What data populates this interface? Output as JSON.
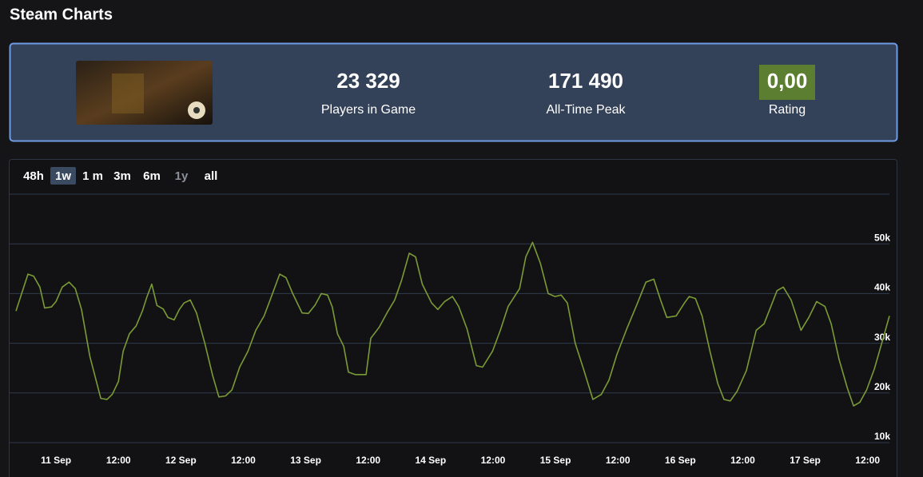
{
  "header": {
    "title": "Steam Charts"
  },
  "stats": [
    {
      "value": "23 329",
      "label": "Players in Game"
    },
    {
      "value": "171 490",
      "label": "All-Time Peak"
    },
    {
      "value": "0,00",
      "label": "Rating"
    }
  ],
  "range_buttons": [
    {
      "label": "48h",
      "state": "normal"
    },
    {
      "label": "1w",
      "state": "selected"
    },
    {
      "label": "1 m",
      "state": "normal"
    },
    {
      "label": "3m",
      "state": "normal"
    },
    {
      "label": "6m",
      "state": "normal"
    },
    {
      "label": "1y",
      "state": "disabled"
    },
    {
      "label": "all",
      "state": "normal"
    }
  ],
  "chart_data": {
    "type": "line",
    "color": "#7a9b35",
    "grid": true,
    "xlim": [
      -7.7,
      160.2
    ],
    "ylim": [
      10000,
      60000
    ],
    "yticks": [
      {
        "value": 10000,
        "label": "10k"
      },
      {
        "value": 20000,
        "label": "20k"
      },
      {
        "value": 30000,
        "label": "30k"
      },
      {
        "value": 40000,
        "label": "40k"
      },
      {
        "value": 50000,
        "label": "50k"
      }
    ],
    "xticks": [
      {
        "value": 0,
        "label": "11 Sep"
      },
      {
        "value": 12,
        "label": "12:00"
      },
      {
        "value": 24,
        "label": "12 Sep"
      },
      {
        "value": 36,
        "label": "12:00"
      },
      {
        "value": 48,
        "label": "13 Sep"
      },
      {
        "value": 60,
        "label": "12:00"
      },
      {
        "value": 72,
        "label": "14 Sep"
      },
      {
        "value": 84,
        "label": "12:00"
      },
      {
        "value": 96,
        "label": "15 Sep"
      },
      {
        "value": 108,
        "label": "12:00"
      },
      {
        "value": 120,
        "label": "16 Sep"
      },
      {
        "value": 132,
        "label": "12:00"
      },
      {
        "value": 144,
        "label": "17 Sep"
      },
      {
        "value": 156,
        "label": "12:00"
      }
    ],
    "x": [
      -7.7,
      -5.4,
      -4.3,
      -3.1,
      -2.2,
      -0.9,
      0,
      1.2,
      2.5,
      3.7,
      4.9,
      6.5,
      8.6,
      9.8,
      10.8,
      12,
      12.9,
      14.1,
      15.4,
      16.6,
      17.5,
      18.4,
      19.4,
      20.6,
      21.5,
      22.7,
      23.7,
      24.6,
      25.8,
      27,
      28.6,
      30.1,
      31.3,
      32.6,
      33.8,
      35.3,
      36.9,
      38.4,
      40,
      41.5,
      43,
      44.2,
      45.5,
      47.3,
      48.5,
      49.8,
      51,
      52.2,
      53.1,
      54.1,
      55.3,
      56.2,
      57.5,
      59.6,
      60.5,
      62.1,
      63.6,
      65.1,
      66.4,
      67.9,
      69.1,
      70.4,
      72.2,
      73.4,
      74.7,
      76.2,
      77.4,
      79,
      80.8,
      82,
      83.9,
      85.4,
      86.9,
      89.1,
      90.3,
      91.6,
      93.1,
      94.6,
      95.9,
      97.1,
      98.3,
      99.8,
      101.4,
      103.2,
      104.8,
      106.3,
      107.8,
      109.7,
      111.5,
      113.4,
      114.9,
      116.2,
      117.4,
      119.2,
      120.8,
      121.7,
      122.9,
      124.2,
      125.7,
      127.2,
      128.4,
      129.6,
      130.9,
      132.7,
      134.6,
      136.1,
      137.3,
      138.6,
      139.8,
      141.3,
      143.2,
      144.7,
      146.2,
      147.8,
      149,
      150.5,
      152.1,
      153.3,
      154.5,
      155.8,
      157.3,
      158.8,
      160.2
    ],
    "values": [
      36500,
      43900,
      43500,
      41300,
      37100,
      37300,
      38400,
      41300,
      42300,
      41000,
      36800,
      27400,
      18900,
      18700,
      19700,
      22300,
      28400,
      31900,
      33500,
      36500,
      39400,
      41900,
      37600,
      36900,
      35200,
      34700,
      36800,
      38100,
      38700,
      36100,
      30000,
      23500,
      19200,
      19400,
      20600,
      25200,
      28400,
      32600,
      35500,
      39700,
      43900,
      43200,
      40000,
      36100,
      36000,
      37700,
      40000,
      39700,
      37300,
      31900,
      29400,
      24200,
      23700,
      23700,
      31000,
      33200,
      36100,
      38700,
      42600,
      48100,
      47400,
      41900,
      38100,
      36800,
      38400,
      39400,
      37400,
      32900,
      25500,
      25200,
      28400,
      32600,
      37400,
      41000,
      47400,
      50300,
      46100,
      40000,
      39400,
      39700,
      38100,
      30000,
      24800,
      18700,
      19700,
      22600,
      27700,
      32900,
      37400,
      42300,
      42900,
      38700,
      35200,
      35500,
      38100,
      39400,
      39000,
      35500,
      28400,
      21900,
      18700,
      18400,
      20300,
      24500,
      32600,
      33900,
      37100,
      40600,
      41300,
      38700,
      32600,
      35200,
      38400,
      37400,
      33900,
      26800,
      21000,
      17400,
      18100,
      20600,
      24800,
      30300,
      35500
    ]
  }
}
